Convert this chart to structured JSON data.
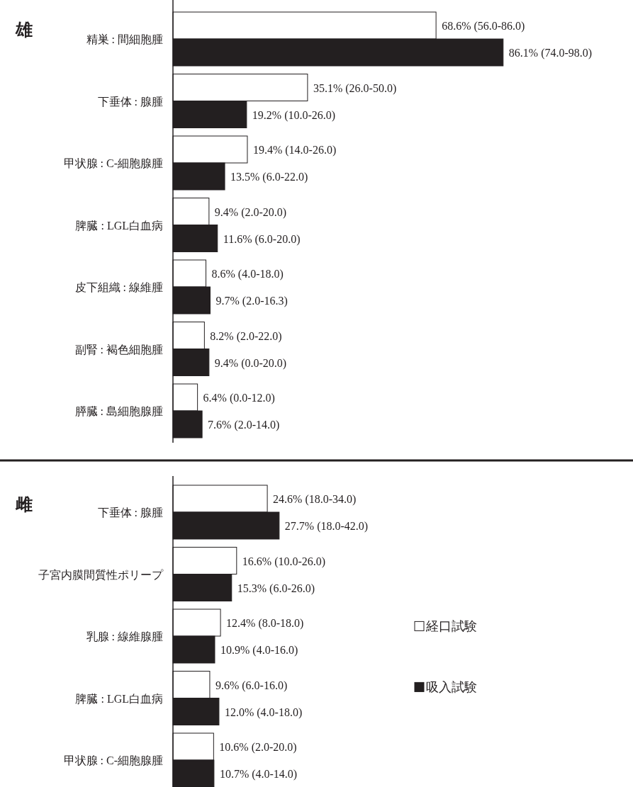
{
  "chart_data": [
    {
      "type": "bar",
      "orientation": "horizontal",
      "title": "雄",
      "tick_labels": "y",
      "legend": false,
      "data_labels": false,
      "categories": [
        "精巣 : 間細胞腫",
        "下垂体 : 腺腫",
        "甲状腺 : C-細胞腺腫",
        "脾臓 : LGL白血病",
        "皮下組織 : 線維腫",
        "副腎 : 褐色細胞腫",
        "膵臓 : 島細胞腺腫"
      ],
      "series": [
        {
          "color": "#ffffff",
          "values": [
            68.6,
            35.1,
            19.4,
            9.4,
            8.6,
            8.2,
            6.4
          ],
          "value_labels": [
            "68.6% (56.0-86.0)",
            "35.1% (26.0-50.0)",
            "19.4% (14.0-26.0)",
            "9.4% (2.0-20.0)",
            "8.6% (4.0-18.0)",
            "8.2% (2.0-22.0)",
            "6.4% (0.0-12.0)"
          ]
        },
        {
          "color": "#231f20",
          "values": [
            86.1,
            19.2,
            13.5,
            11.6,
            9.7,
            9.4,
            7.6
          ],
          "value_labels": [
            "86.1% (74.0-98.0)",
            "19.2% (10.0-26.0)",
            "13.5% (6.0-22.0)",
            "11.6% (6.0-20.0)",
            "9.7% (2.0-16.3)",
            "9.4% (0.0-20.0)",
            "7.6% (2.0-14.0)"
          ]
        }
      ]
    },
    {
      "type": "bar",
      "orientation": "horizontal",
      "title": "雌",
      "tick_labels": "y",
      "legend": "right",
      "data_labels": false,
      "categories": [
        "下垂体 : 腺腫",
        "子宮内膜間質性ポリープ",
        "乳腺 : 線維腺腫",
        "脾臓 : LGL白血病",
        "甲状腺 : C-細胞腺腫"
      ],
      "series": [
        {
          "name": "経口試験",
          "color": "#ffffff",
          "values": [
            24.6,
            16.6,
            12.4,
            9.6,
            10.6
          ],
          "value_labels": [
            "24.6% (18.0-34.0)",
            "16.6% (10.0-26.0)",
            "12.4% (8.0-18.0)",
            "9.6% (6.0-16.0)",
            "10.6% (2.0-20.0)"
          ]
        },
        {
          "name": "吸入試験",
          "color": "#231f20",
          "values": [
            27.7,
            15.3,
            10.9,
            12.0,
            10.7
          ],
          "value_labels": [
            "27.7% (18.0-42.0)",
            "15.3% (6.0-26.0)",
            "10.9% (4.0-16.0)",
            "12.0% (4.0-18.0)",
            "10.7% (4.0-14.0)"
          ]
        }
      ]
    }
  ]
}
